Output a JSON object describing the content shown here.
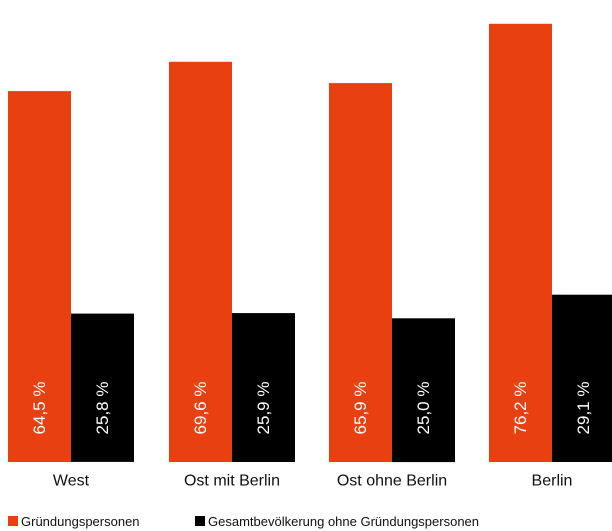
{
  "chart_data": {
    "type": "bar",
    "categories": [
      "West",
      "Ost mit Berlin",
      "Ost ohne Berlin",
      "Berlin"
    ],
    "series": [
      {
        "name": "Gründungspersonen",
        "color": "#e84011",
        "values": [
          64.5,
          69.6,
          65.9,
          76.2
        ],
        "labels": [
          "64,5 %",
          "69,6 %",
          "65,9 %",
          "76,2 %"
        ]
      },
      {
        "name": "Gesamtbevölkerung ohne Gründungspersonen",
        "color": "#000000",
        "values": [
          25.8,
          25.9,
          25.0,
          29.1
        ],
        "labels": [
          "25,8 %",
          "25,9 %",
          "25,0 %",
          "29,1 %"
        ]
      }
    ],
    "ylim": [
      0,
      80
    ],
    "grid": false,
    "legend_position": "bottom-left",
    "title": "",
    "xlabel": "",
    "ylabel": ""
  }
}
